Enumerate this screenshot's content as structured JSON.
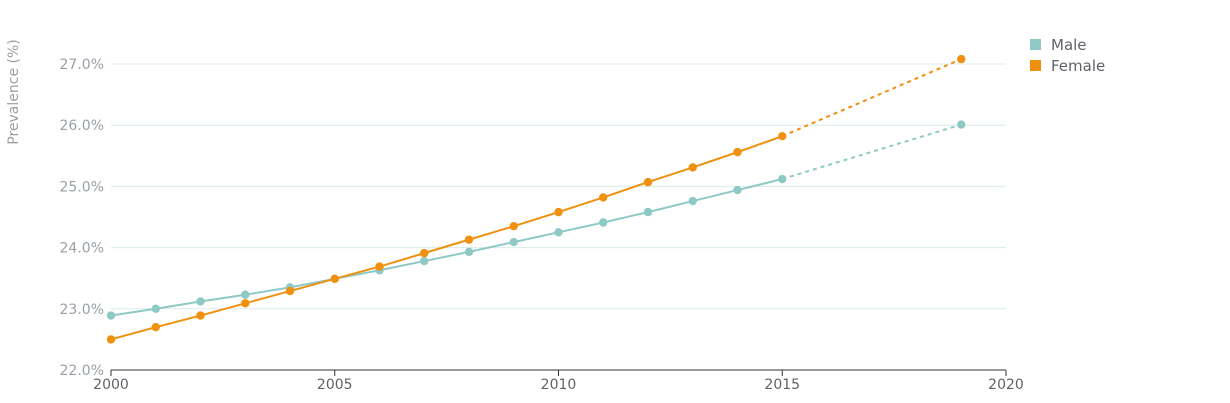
{
  "chart_data": {
    "type": "line",
    "ylabel": "Prevalence (%)",
    "xlabel": "",
    "x_ticks": [
      "2000",
      "2005",
      "2010",
      "2015",
      "2020"
    ],
    "y_ticks": [
      "22.0%",
      "23.0%",
      "24.0%",
      "25.0%",
      "26.0%",
      "27.0%"
    ],
    "xlim": [
      2000,
      2020
    ],
    "ylim": [
      22.0,
      27.5
    ],
    "grid": true,
    "legend_position": "top-right",
    "series": [
      {
        "name": "Male",
        "color": "#8ec9c6",
        "points": [
          {
            "x": 2000,
            "y": 22.89
          },
          {
            "x": 2001,
            "y": 23.0
          },
          {
            "x": 2002,
            "y": 23.12
          },
          {
            "x": 2003,
            "y": 23.23
          },
          {
            "x": 2004,
            "y": 23.35
          },
          {
            "x": 2005,
            "y": 23.49
          },
          {
            "x": 2006,
            "y": 23.63
          },
          {
            "x": 2007,
            "y": 23.78
          },
          {
            "x": 2008,
            "y": 23.93
          },
          {
            "x": 2009,
            "y": 24.09
          },
          {
            "x": 2010,
            "y": 24.25
          },
          {
            "x": 2011,
            "y": 24.41
          },
          {
            "x": 2012,
            "y": 24.58
          },
          {
            "x": 2013,
            "y": 24.76
          },
          {
            "x": 2014,
            "y": 24.94
          },
          {
            "x": 2015,
            "y": 25.12
          }
        ],
        "projection": [
          {
            "x": 2015,
            "y": 25.12
          },
          {
            "x": 2019,
            "y": 26.01
          }
        ]
      },
      {
        "name": "Female",
        "color": "#f0900f",
        "points": [
          {
            "x": 2000,
            "y": 22.5
          },
          {
            "x": 2001,
            "y": 22.7
          },
          {
            "x": 2002,
            "y": 22.89
          },
          {
            "x": 2003,
            "y": 23.09
          },
          {
            "x": 2004,
            "y": 23.29
          },
          {
            "x": 2005,
            "y": 23.49
          },
          {
            "x": 2006,
            "y": 23.69
          },
          {
            "x": 2007,
            "y": 23.91
          },
          {
            "x": 2008,
            "y": 24.13
          },
          {
            "x": 2009,
            "y": 24.35
          },
          {
            "x": 2010,
            "y": 24.58
          },
          {
            "x": 2011,
            "y": 24.82
          },
          {
            "x": 2012,
            "y": 25.07
          },
          {
            "x": 2013,
            "y": 25.31
          },
          {
            "x": 2014,
            "y": 25.56
          },
          {
            "x": 2015,
            "y": 25.82
          }
        ],
        "projection": [
          {
            "x": 2015,
            "y": 25.82
          },
          {
            "x": 2019,
            "y": 27.08
          }
        ]
      }
    ]
  },
  "colors": {
    "grid": "#d9ece9",
    "axis": "#333333"
  }
}
